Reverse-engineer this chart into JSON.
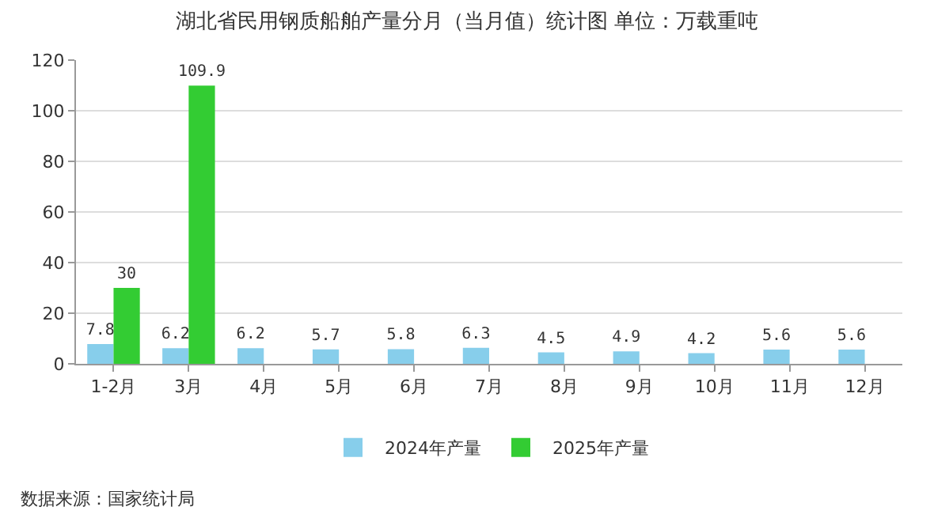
{
  "chart_data": {
    "type": "bar",
    "title": "湖北省民用钢质船舶产量分月（当月值）统计图 单位：万载重吨",
    "categories": [
      "1-2月",
      "3月",
      "4月",
      "5月",
      "6月",
      "7月",
      "8月",
      "9月",
      "10月",
      "11月",
      "12月"
    ],
    "series": [
      {
        "name": "2024年产量",
        "color": "#87ceeb",
        "values": [
          7.8,
          6.2,
          6.2,
          5.7,
          5.8,
          6.3,
          4.5,
          4.9,
          4.2,
          5.6,
          5.6
        ]
      },
      {
        "name": "2025年产量",
        "color": "#33cc33",
        "values": [
          30,
          109.9,
          null,
          null,
          null,
          null,
          null,
          null,
          null,
          null,
          null
        ]
      }
    ],
    "ylim": [
      0,
      120
    ],
    "yticks": [
      0,
      20,
      40,
      60,
      80,
      100,
      120
    ],
    "grid": "y",
    "legend": "bottom",
    "data_labels": true,
    "annotations": [
      "数据来源：国家统计局"
    ]
  }
}
